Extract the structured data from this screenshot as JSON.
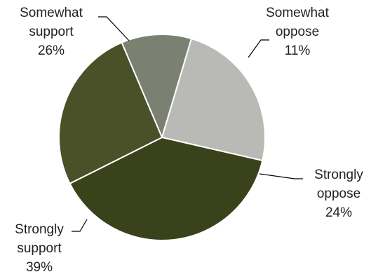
{
  "chart_data": {
    "type": "pie",
    "slices": [
      {
        "label": "Somewhat oppose",
        "value": 11,
        "display": "11%",
        "color": "#7b8170"
      },
      {
        "label": "Strongly oppose",
        "value": 24,
        "display": "24%",
        "color": "#b9bab5"
      },
      {
        "label": "Strongly support",
        "value": 39,
        "display": "39%",
        "color": "#3a421c"
      },
      {
        "label": "Somewhat support",
        "value": 26,
        "display": "26%",
        "color": "#4a5027"
      }
    ],
    "start_angle_deg": 337,
    "direction": "clockwise",
    "label_lines": [
      [
        "Somewhat",
        "oppose",
        "11%"
      ],
      [
        "Strongly",
        "oppose",
        "24%"
      ],
      [
        "Strongly",
        "support",
        "39%"
      ],
      [
        "Somewhat",
        "support",
        "26%"
      ]
    ]
  }
}
